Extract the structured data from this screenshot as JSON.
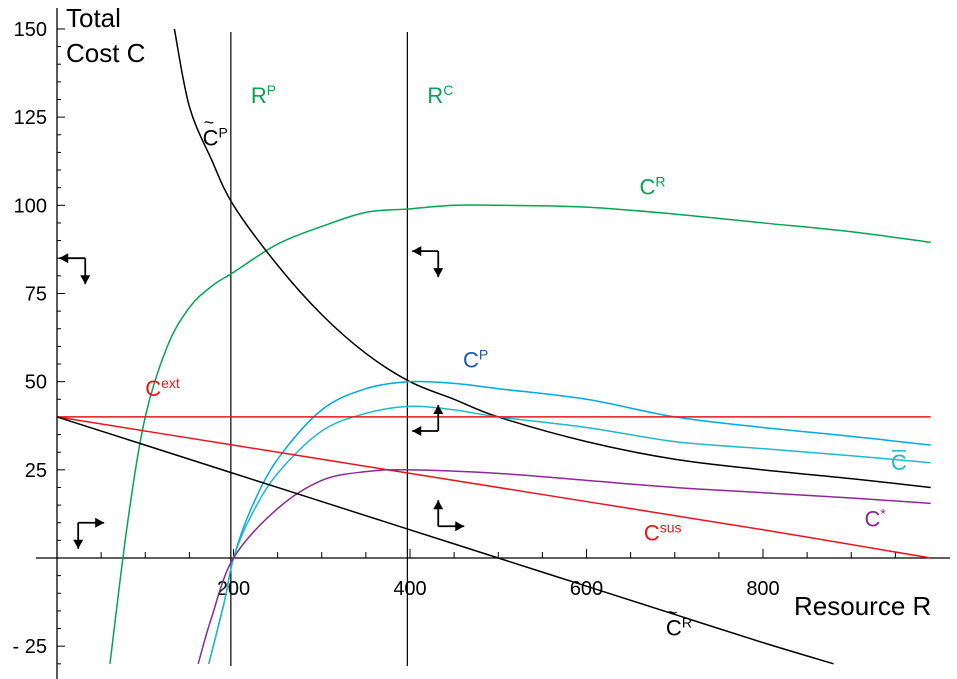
{
  "chart_data": {
    "type": "line",
    "title": "",
    "xlabel": "Resource R",
    "ylabel_lines": [
      "Total",
      "Cost C"
    ],
    "xlim": [
      -30,
      1000
    ],
    "ylim": [
      -30,
      150
    ],
    "x_ticks": [
      200,
      400,
      600,
      800
    ],
    "y_ticks": [
      150,
      125,
      100,
      75,
      50,
      25,
      -25
    ],
    "y_tick_labels": [
      "150",
      "125",
      "100",
      "75",
      "50",
      "25",
      "- 25"
    ],
    "grid": false,
    "vertical_lines": [
      {
        "name": "R",
        "sup": "P",
        "x": 197,
        "color": "#00a651"
      },
      {
        "name": "R",
        "sup": "C",
        "x": 397,
        "color": "#00a651"
      }
    ],
    "series": [
      {
        "name": "C",
        "sup": "R",
        "tilde": false,
        "bar": false,
        "color": "#00a651",
        "label_at": [
          660,
          103
        ],
        "x": [
          60,
          80,
          100,
          125,
          150,
          175,
          200,
          250,
          300,
          350,
          400,
          450,
          500,
          600,
          700,
          800,
          900,
          990
        ],
        "y": [
          -30,
          10,
          40,
          60,
          71,
          77,
          81,
          89,
          94,
          98,
          99,
          100,
          100,
          99.5,
          97.5,
          95,
          92.5,
          89.5
        ]
      },
      {
        "name": "C",
        "sup": "P",
        "tilde": true,
        "bar": false,
        "color": "#000000",
        "label_at": [
          165,
          117
        ],
        "x": [
          133,
          150,
          175,
          200,
          250,
          300,
          350,
          400,
          450,
          500,
          600,
          700,
          800,
          900,
          990
        ],
        "y": [
          150,
          128,
          113,
          100,
          83,
          69,
          58,
          50,
          45,
          40,
          33,
          28,
          25,
          22.5,
          20
        ]
      },
      {
        "name": "C",
        "sup": "P",
        "tilde": false,
        "bar": false,
        "color": "#1e5aa8",
        "line_color": "#00a9e0",
        "label_at": [
          460,
          54
        ],
        "x": [
          172,
          190,
          200,
          220,
          250,
          300,
          350,
          400,
          450,
          500,
          600,
          700,
          800,
          900,
          990
        ],
        "y": [
          -30,
          -12,
          0,
          14,
          28,
          42,
          48,
          50,
          49.5,
          48,
          45,
          40,
          37,
          34.5,
          32
        ]
      },
      {
        "name": "C",
        "sup": "",
        "tilde": false,
        "bar": true,
        "color": "#20b9c8",
        "label_at": [
          945,
          25
        ],
        "x": [
          172,
          190,
          200,
          220,
          250,
          300,
          350,
          400,
          450,
          500,
          600,
          700,
          800,
          900,
          990
        ],
        "y": [
          -30,
          -12,
          0,
          12,
          24,
          36,
          41,
          43,
          42,
          40,
          37,
          33,
          31,
          29,
          27
        ]
      },
      {
        "name": "C",
        "sup": "ext",
        "tilde": false,
        "bar": false,
        "color": "#e8141e",
        "label_at": [
          100,
          46
        ],
        "x": [
          0,
          990
        ],
        "y": [
          40,
          40
        ]
      },
      {
        "name": "C",
        "sup": "sus",
        "tilde": false,
        "bar": false,
        "color": "#e8141e",
        "label_at": [
          665,
          5
        ],
        "x": [
          0,
          200,
          400,
          600,
          800,
          990
        ],
        "y": [
          40,
          32,
          24,
          16,
          8,
          0
        ]
      },
      {
        "name": "C",
        "sup": "*",
        "tilde": false,
        "bar": false,
        "color": "#8b2a96",
        "label_at": [
          915,
          9
        ],
        "x": [
          160,
          175,
          200,
          250,
          300,
          350,
          400,
          500,
          600,
          700,
          800,
          900,
          990
        ],
        "y": [
          -30,
          -17,
          0,
          14,
          22,
          24.5,
          25,
          24,
          22,
          20,
          18.5,
          17,
          15.5
        ]
      },
      {
        "name": "C",
        "sup": "R",
        "tilde": true,
        "bar": false,
        "color": "#000000",
        "label_at": [
          690,
          -22
        ],
        "x": [
          0,
          100,
          200,
          300,
          400,
          500,
          600,
          700,
          800,
          880
        ],
        "y": [
          40,
          32,
          24,
          16,
          8,
          0,
          -8,
          -16,
          -24,
          -30
        ]
      }
    ],
    "flow_arrows": [
      {
        "at": [
          32,
          85
        ],
        "h": "left",
        "v": "down"
      },
      {
        "at": [
          432,
          87
        ],
        "h": "left",
        "v": "down"
      },
      {
        "at": [
          24,
          10
        ],
        "h": "right",
        "v": "down"
      },
      {
        "at": [
          432,
          36
        ],
        "h": "left",
        "v": "up"
      },
      {
        "at": [
          432,
          9
        ],
        "h": "right",
        "v": "up"
      }
    ]
  }
}
